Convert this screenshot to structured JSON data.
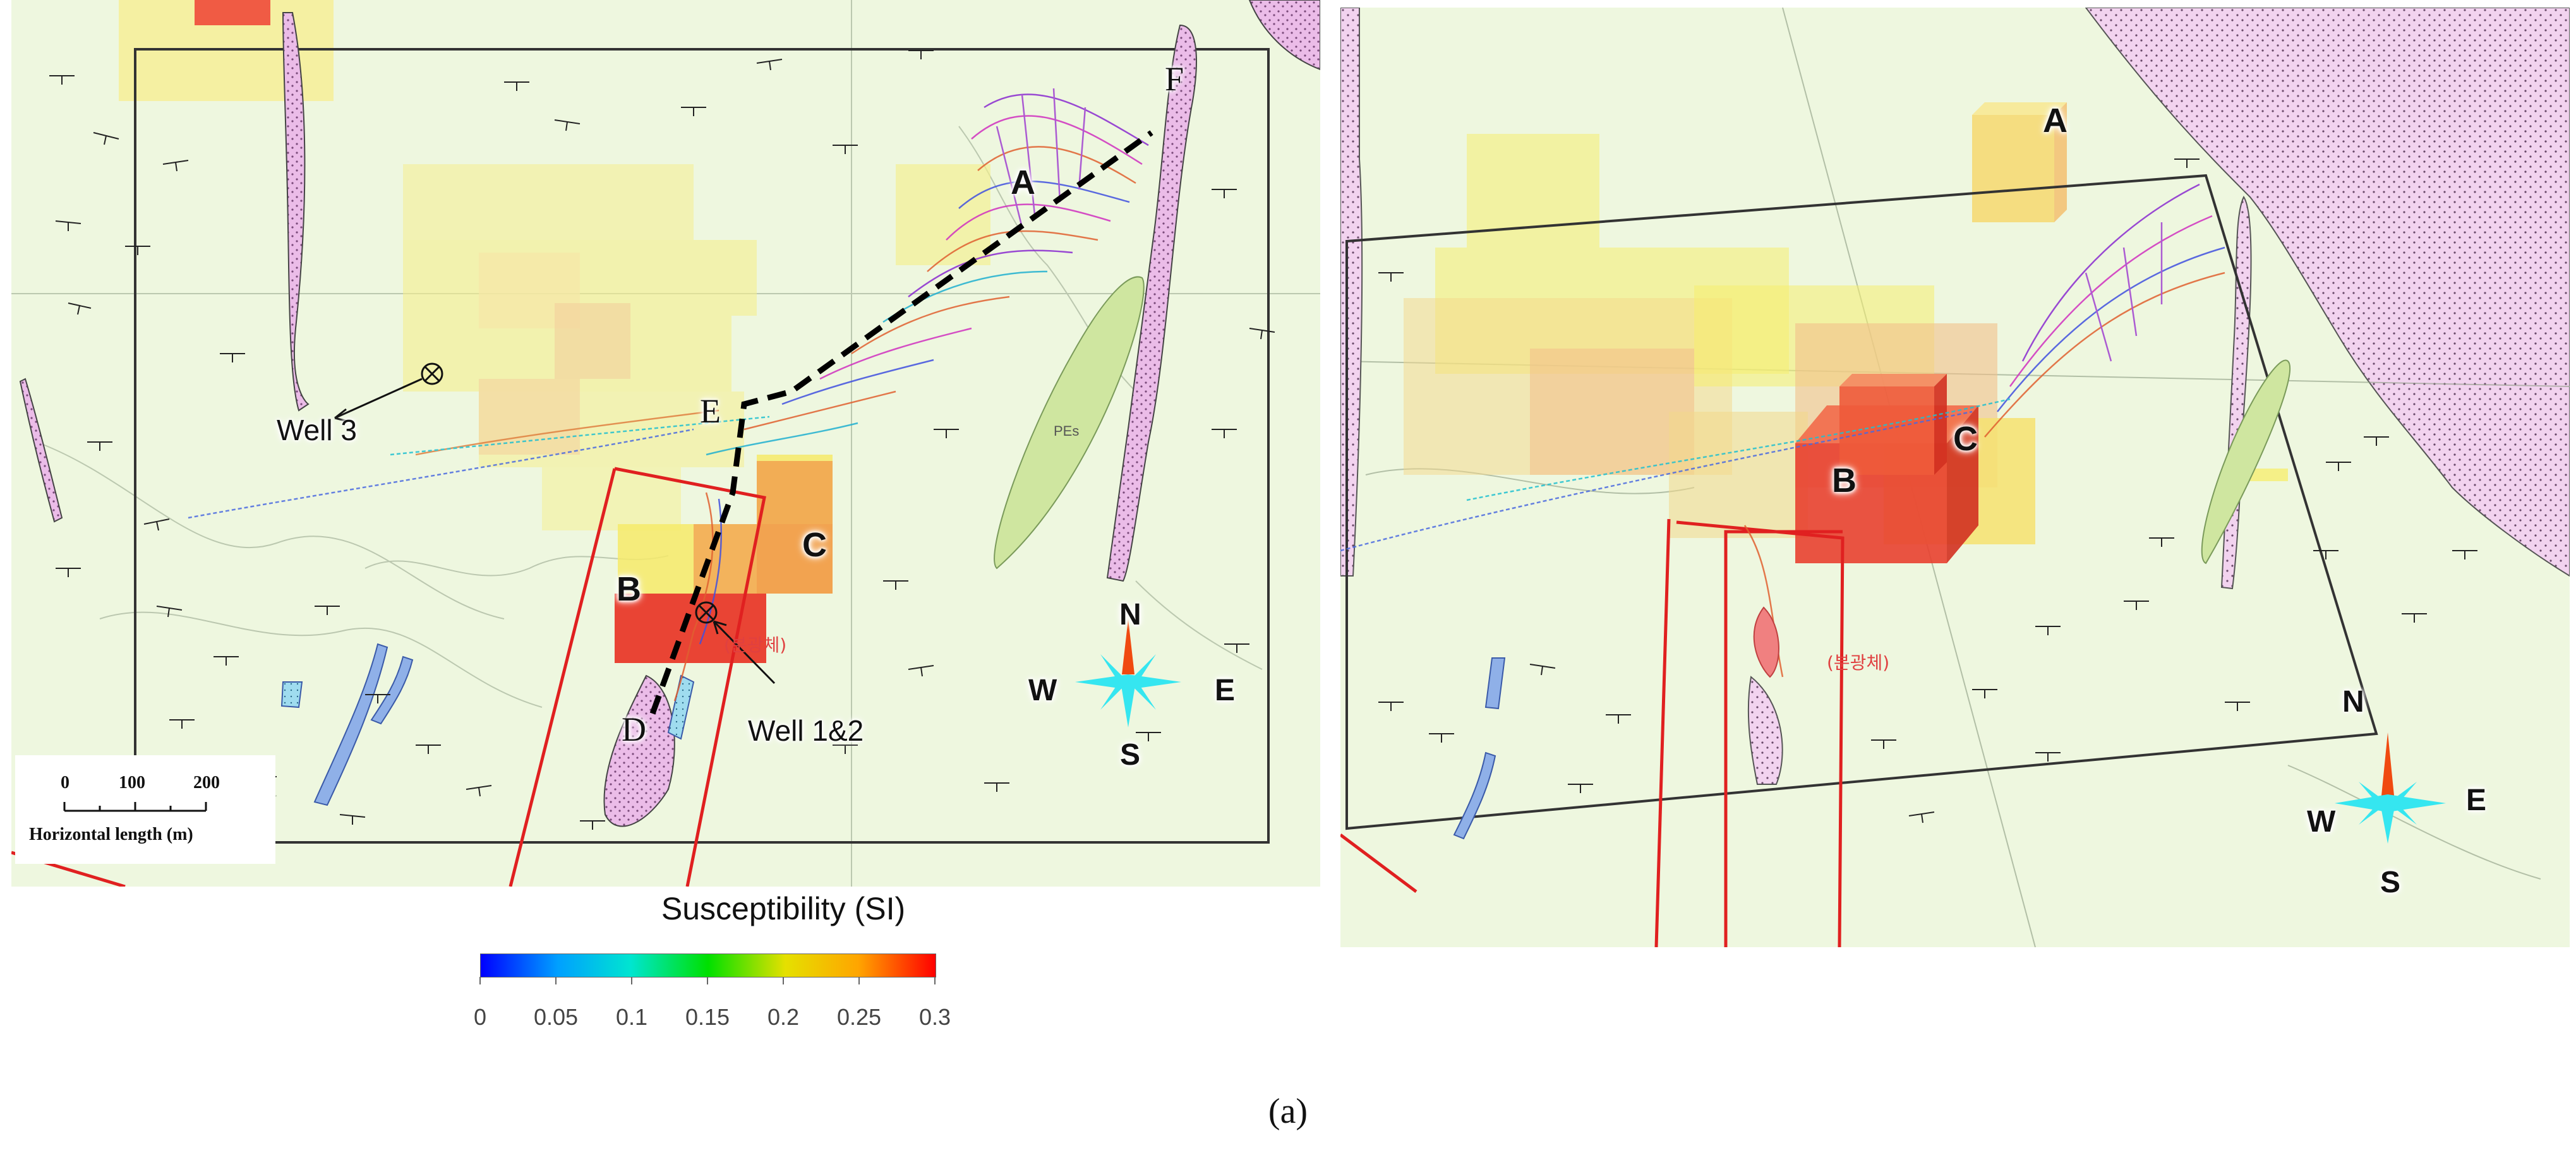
{
  "colors": {
    "map_background": "#eef7df",
    "anomaly_red": "#ee3a2a",
    "anomaly_orange": "#f07a3a",
    "anomaly_yellow": "#f7ef8a",
    "cross_section_line": "#e02020",
    "profile_line": "#000000",
    "dike_pink": "#e8b8e8",
    "compass_cyan": "#35e6f0",
    "compass_north": "#f04a10"
  },
  "left_map": {
    "labels": {
      "A": "A",
      "B": "B",
      "C": "C",
      "D": "D",
      "E": "E",
      "F": "F"
    },
    "wells": {
      "well3": "Well 3",
      "well12": "Well 1&2"
    },
    "korean_annotation": "(분광체)",
    "compass": {
      "n": "N",
      "s": "S",
      "e": "E",
      "w": "W"
    },
    "scale_bar": {
      "ticks": [
        "0",
        "100",
        "200"
      ],
      "caption": "Horizontal length (m)"
    }
  },
  "right_map": {
    "labels": {
      "A": "A",
      "B": "B",
      "C": "C"
    },
    "korean_annotation": "(분광체)",
    "compass": {
      "n": "N",
      "s": "S",
      "e": "E",
      "w": "W"
    }
  },
  "colorbar": {
    "title": "Susceptibility (SI)",
    "ticks": [
      "0",
      "0.05",
      "0.1",
      "0.15",
      "0.2",
      "0.25",
      "0.3"
    ],
    "range": [
      0,
      0.3
    ],
    "colormap": "jet"
  },
  "caption": "(a)"
}
